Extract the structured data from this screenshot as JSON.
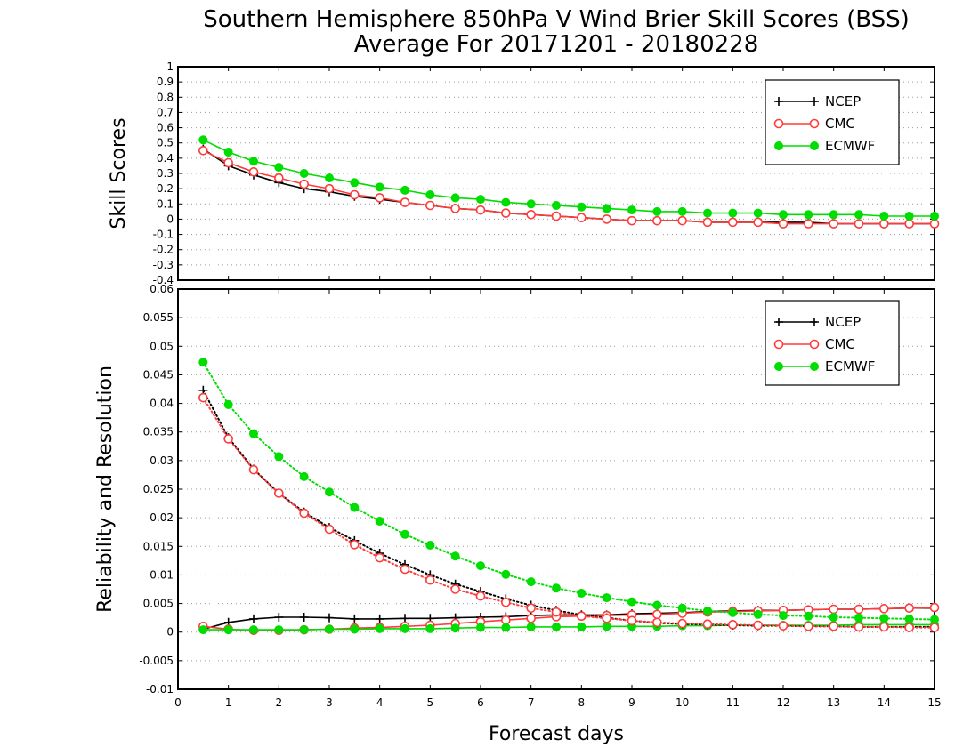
{
  "title_line1": "Southern Hemisphere 850hPa V Wind Brier Skill Scores (BSS)",
  "title_line2": "Average For 20171201 - 20180228",
  "xlabel": "Forecast days",
  "chart_data": [
    {
      "type": "line",
      "panel": "top",
      "ylabel": "Skill Scores",
      "xlim": [
        0,
        15
      ],
      "ylim": [
        -0.4,
        1
      ],
      "x_ticks": [
        0,
        1,
        2,
        3,
        4,
        5,
        6,
        7,
        8,
        9,
        10,
        11,
        12,
        13,
        14,
        15
      ],
      "y_ticks": [
        -0.4,
        -0.3,
        -0.2,
        -0.1,
        0,
        0.1,
        0.2,
        0.3,
        0.4,
        0.5,
        0.6,
        0.7,
        0.8,
        0.9,
        1
      ],
      "y_tick_labels": [
        "-0.4",
        "-0.3",
        "-0.2",
        "-0.1",
        "0",
        "0.1",
        "0.2",
        "0.3",
        "0.4",
        "0.5",
        "0.6",
        "0.7",
        "0.8",
        "0.9",
        "1"
      ],
      "grid": "horizontal dotted",
      "legend_position": "top-right",
      "x": [
        0.5,
        1,
        1.5,
        2,
        2.5,
        3,
        3.5,
        4,
        4.5,
        5,
        5.5,
        6,
        6.5,
        7,
        7.5,
        8,
        8.5,
        9,
        9.5,
        10,
        10.5,
        11,
        11.5,
        12,
        12.5,
        13,
        13.5,
        14,
        14.5,
        15
      ],
      "series": [
        {
          "name": "NCEP",
          "color": "#000000",
          "marker": "plus",
          "style": "solid",
          "values": [
            0.46,
            0.35,
            0.29,
            0.24,
            0.2,
            0.18,
            0.15,
            0.13,
            0.11,
            0.09,
            0.07,
            0.06,
            0.04,
            0.03,
            0.02,
            0.01,
            0,
            -0.01,
            -0.01,
            -0.01,
            -0.02,
            -0.02,
            -0.02,
            -0.02,
            -0.02,
            -0.03,
            -0.03,
            -0.03,
            -0.03,
            -0.03
          ]
        },
        {
          "name": "CMC",
          "color": "#ff3b3b",
          "marker": "open-circle",
          "style": "solid",
          "values": [
            0.45,
            0.37,
            0.31,
            0.27,
            0.23,
            0.2,
            0.16,
            0.14,
            0.11,
            0.09,
            0.07,
            0.06,
            0.04,
            0.03,
            0.02,
            0.01,
            0,
            -0.01,
            -0.01,
            -0.01,
            -0.02,
            -0.02,
            -0.02,
            -0.03,
            -0.03,
            -0.03,
            -0.03,
            -0.03,
            -0.03,
            -0.03
          ]
        },
        {
          "name": "ECMWF",
          "color": "#00dd00",
          "marker": "filled-circle",
          "style": "solid",
          "values": [
            0.52,
            0.44,
            0.38,
            0.34,
            0.3,
            0.27,
            0.24,
            0.21,
            0.19,
            0.16,
            0.14,
            0.13,
            0.11,
            0.1,
            0.09,
            0.08,
            0.07,
            0.06,
            0.05,
            0.05,
            0.04,
            0.04,
            0.04,
            0.03,
            0.03,
            0.03,
            0.03,
            0.02,
            0.02,
            0.02
          ]
        }
      ]
    },
    {
      "type": "line",
      "panel": "bottom",
      "ylabel": "Reliability and Resolution",
      "xlim": [
        0,
        15
      ],
      "ylim": [
        -0.01,
        0.06
      ],
      "x_ticks": [
        0,
        1,
        2,
        3,
        4,
        5,
        6,
        7,
        8,
        9,
        10,
        11,
        12,
        13,
        14,
        15
      ],
      "y_ticks": [
        -0.01,
        -0.005,
        0,
        0.005,
        0.01,
        0.015,
        0.02,
        0.025,
        0.03,
        0.035,
        0.04,
        0.045,
        0.05,
        0.055,
        0.06
      ],
      "y_tick_labels": [
        "-0.01",
        "-0.005",
        "0",
        "0.005",
        "0.01",
        "0.015",
        "0.02",
        "0.025",
        "0.03",
        "0.035",
        "0.04",
        "0.045",
        "0.05",
        "0.055",
        "0.06"
      ],
      "grid": "horizontal dotted",
      "legend_position": "top-right",
      "x": [
        0.5,
        1,
        1.5,
        2,
        2.5,
        3,
        3.5,
        4,
        4.5,
        5,
        5.5,
        6,
        6.5,
        7,
        7.5,
        8,
        8.5,
        9,
        9.5,
        10,
        10.5,
        11,
        11.5,
        12,
        12.5,
        13,
        13.5,
        14,
        14.5,
        15
      ],
      "series": [
        {
          "name": "NCEP",
          "color": "#000000",
          "marker": "plus",
          "style": "solid",
          "values": [
            0.0005,
            0.0017,
            0.0023,
            0.0026,
            0.0026,
            0.0025,
            0.0023,
            0.0023,
            0.0024,
            0.0024,
            0.0025,
            0.0026,
            0.0027,
            0.0029,
            0.003,
            0.003,
            0.003,
            0.0032,
            0.0033,
            0.0034,
            0.0036,
            0.0037,
            0.0038,
            0.0038,
            0.0039,
            0.004,
            0.004,
            0.0041,
            0.0042,
            0.0042
          ]
        },
        {
          "name": "CMC",
          "color": "#ff3b3b",
          "marker": "open-circle",
          "style": "solid",
          "values": [
            0.001,
            0.0005,
            0.0003,
            0.0003,
            0.0004,
            0.0005,
            0.0007,
            0.0008,
            0.001,
            0.0012,
            0.0015,
            0.0018,
            0.0021,
            0.0024,
            0.0027,
            0.0028,
            0.0029,
            0.003,
            0.0031,
            0.0033,
            0.0035,
            0.0036,
            0.0037,
            0.0038,
            0.0039,
            0.004,
            0.004,
            0.0041,
            0.0042,
            0.0043
          ]
        },
        {
          "name": "ECMWF",
          "color": "#00dd00",
          "marker": "filled-circle",
          "style": "solid",
          "values": [
            0.0004,
            0.0004,
            0.0004,
            0.0004,
            0.0004,
            0.0005,
            0.0005,
            0.0006,
            0.0006,
            0.0006,
            0.0007,
            0.0008,
            0.0008,
            0.0009,
            0.0009,
            0.0009,
            0.001,
            0.001,
            0.001,
            0.0011,
            0.0011,
            0.0012,
            0.0012,
            0.0012,
            0.0012,
            0.0012,
            0.0013,
            0.0013,
            0.0013,
            0.0013
          ]
        },
        {
          "name": "",
          "legend_ref": "NCEP",
          "color": "#000000",
          "marker": "plus",
          "style": "dotted",
          "values": [
            0.0423,
            0.034,
            0.0285,
            0.0243,
            0.021,
            0.0183,
            0.016,
            0.0138,
            0.0118,
            0.01,
            0.0084,
            0.0071,
            0.0058,
            0.0047,
            0.0038,
            0.003,
            0.0025,
            0.002,
            0.0016,
            0.0014,
            0.0013,
            0.0012,
            0.0011,
            0.0011,
            0.001,
            0.001,
            0.0009,
            0.0009,
            0.0009,
            0.0009
          ]
        },
        {
          "name": "",
          "legend_ref": "CMC",
          "color": "#ff3b3b",
          "marker": "open-circle",
          "style": "dotted",
          "values": [
            0.041,
            0.0338,
            0.0284,
            0.0243,
            0.0208,
            0.018,
            0.0153,
            0.013,
            0.011,
            0.0091,
            0.0075,
            0.0063,
            0.0052,
            0.0042,
            0.0035,
            0.0028,
            0.0024,
            0.002,
            0.0017,
            0.0015,
            0.0014,
            0.0013,
            0.0012,
            0.0011,
            0.001,
            0.001,
            0.0009,
            0.0009,
            0.0008,
            0.0008
          ]
        },
        {
          "name": "",
          "legend_ref": "ECMWF",
          "color": "#00dd00",
          "marker": "filled-circle",
          "style": "dotted",
          "values": [
            0.0472,
            0.0398,
            0.0347,
            0.0307,
            0.0272,
            0.0245,
            0.0218,
            0.0194,
            0.0171,
            0.0152,
            0.0133,
            0.0116,
            0.0101,
            0.0088,
            0.0077,
            0.0068,
            0.006,
            0.0053,
            0.0047,
            0.0042,
            0.0037,
            0.0034,
            0.0031,
            0.0029,
            0.0028,
            0.0026,
            0.0025,
            0.0024,
            0.0023,
            0.0022
          ]
        }
      ]
    }
  ]
}
